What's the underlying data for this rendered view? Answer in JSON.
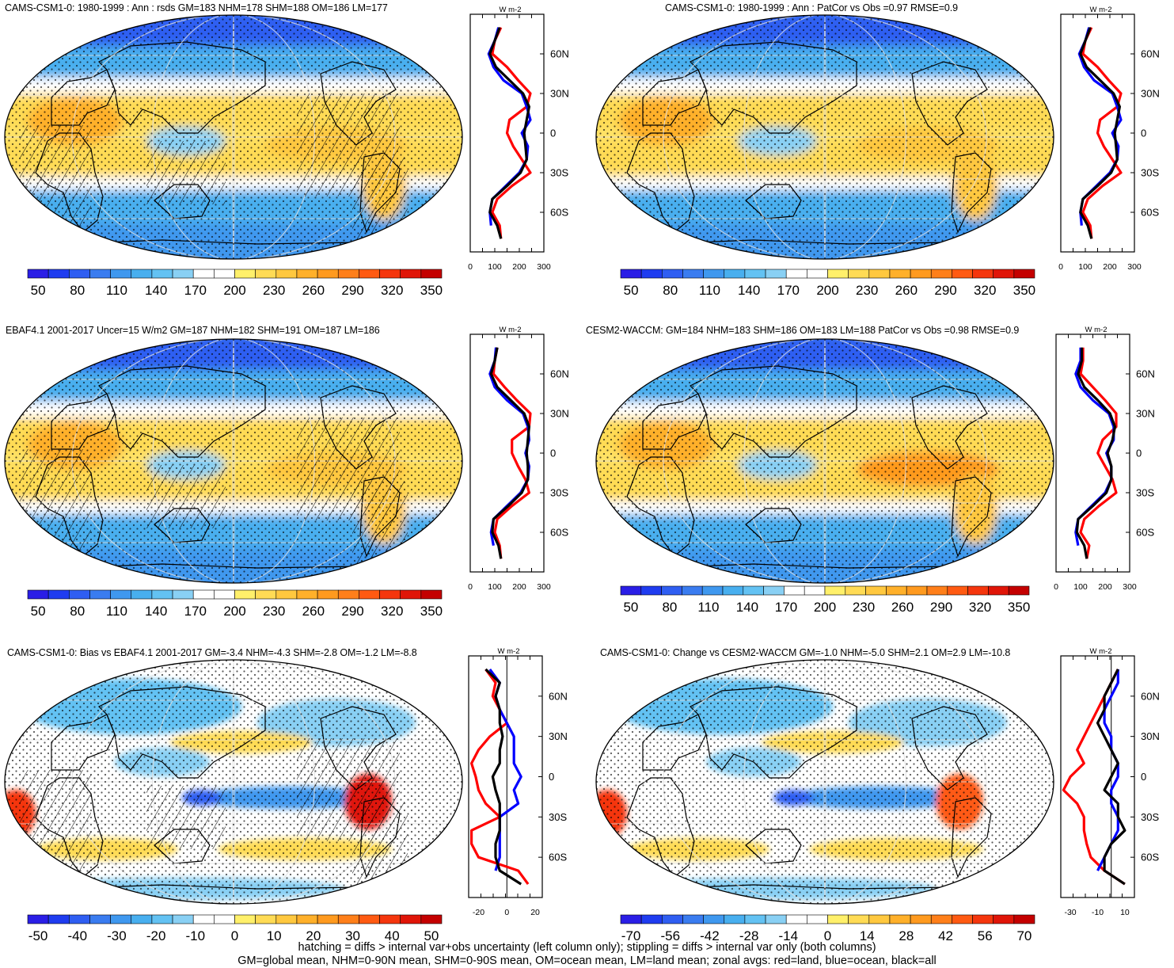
{
  "panels": [
    {
      "title": "CAMS-CSM1-0: 1980-1999 : Ann : rsds GM=183 NHM=178 SHM=188 OM=186 LM=177",
      "kind": "abs",
      "hatch": true,
      "colorbar": {
        "labels": [
          "50",
          "80",
          "110",
          "140",
          "170",
          "200",
          "230",
          "260",
          "290",
          "320",
          "350"
        ]
      },
      "zonal": {
        "unit": "W m-2",
        "xticks": [
          "0",
          "100",
          "200",
          "300"
        ],
        "xlim": [
          0,
          300
        ],
        "yticks": [
          "60N",
          "30N",
          "0",
          "30S",
          "60S"
        ],
        "zero_line": false
      }
    },
    {
      "title": "CAMS-CSM1-0: 1980-1999 : Ann : PatCor vs Obs =0.97 RMSE=0.9",
      "kind": "abs",
      "hatch": false,
      "colorbar": {
        "labels": [
          "50",
          "80",
          "110",
          "140",
          "170",
          "200",
          "230",
          "260",
          "290",
          "320",
          "350"
        ]
      },
      "zonal": {
        "unit": "W m-2",
        "xticks": [
          "0",
          "100",
          "200",
          "300"
        ],
        "xlim": [
          0,
          300
        ],
        "yticks": [
          "60N",
          "30N",
          "0",
          "30S",
          "60S"
        ],
        "zero_line": false
      }
    },
    {
      "title": "EBAF4.1 2001-2017 Uncer=15 W/m2 GM=187 NHM=182 SHM=191 OM=187 LM=186",
      "kind": "abs",
      "hatch": true,
      "colorbar": {
        "labels": [
          "50",
          "80",
          "110",
          "140",
          "170",
          "200",
          "230",
          "260",
          "290",
          "320",
          "350"
        ]
      },
      "zonal": {
        "unit": "W m-2",
        "xticks": [
          "0",
          "100",
          "200",
          "300"
        ],
        "xlim": [
          0,
          300
        ],
        "yticks": [
          "60N",
          "30N",
          "0",
          "30S",
          "60S"
        ],
        "zero_line": false
      }
    },
    {
      "title": "CESM2-WACCM: GM=184 NHM=183 SHM=186 OM=183 LM=188 PatCor vs Obs =0.98 RMSE=0.9",
      "kind": "abs",
      "hatch": false,
      "colorbar": {
        "labels": [
          "50",
          "80",
          "110",
          "140",
          "170",
          "200",
          "230",
          "260",
          "290",
          "320",
          "350"
        ]
      },
      "zonal": {
        "unit": "W m-2",
        "xticks": [
          "0",
          "100",
          "200",
          "300"
        ],
        "xlim": [
          0,
          300
        ],
        "yticks": [
          "60N",
          "30N",
          "0",
          "30S",
          "60S"
        ],
        "zero_line": false
      }
    },
    {
      "title": "CAMS-CSM1-0: Bias vs EBAF4.1 2001-2017 GM=-3.4 NHM=-4.3 SHM=-2.8 OM=-1.2 LM=-8.8",
      "kind": "diff",
      "hatch": true,
      "colorbar": {
        "labels": [
          "-50",
          "-40",
          "-30",
          "-20",
          "-10",
          "0",
          "10",
          "20",
          "30",
          "40",
          "50"
        ]
      },
      "zonal": {
        "unit": "W m-2",
        "xticks": [
          "-20",
          "0",
          "20"
        ],
        "xlim": [
          -27,
          25
        ],
        "yticks": [
          "60N",
          "30N",
          "0",
          "30S",
          "60S"
        ],
        "zero_line": true
      }
    },
    {
      "title": "CAMS-CSM1-0: Change vs CESM2-WACCM GM=-1.0 NHM=-5.0 SHM=2.1 OM=2.9 LM=-10.8",
      "kind": "diff",
      "hatch": false,
      "colorbar": {
        "labels": [
          "-70",
          "-56",
          "-42",
          "-28",
          "-14",
          "0",
          "14",
          "28",
          "42",
          "56",
          "70"
        ]
      },
      "zonal": {
        "unit": "W m-2",
        "xticks": [
          "-30",
          "-10",
          "10"
        ],
        "xlim": [
          -37,
          17
        ],
        "yticks": [
          "60N",
          "30N",
          "0",
          "30S",
          "60S"
        ],
        "zero_line": true
      }
    }
  ],
  "chart_data": [
    {
      "type": "line",
      "title": "CAMS-CSM1-0: 1980-1999 : Ann : rsds GM=183 NHM=178 SHM=188 OM=186 LM=177",
      "xlabel": "W m-2",
      "y_latitude": [
        80,
        70,
        60,
        50,
        40,
        30,
        20,
        10,
        0,
        -10,
        -20,
        -30,
        -40,
        -50,
        -60,
        -70,
        -80
      ],
      "series": [
        {
          "name": "land",
          "color": "#ff0000",
          "values": [
            125,
            100,
            90,
            150,
            195,
            245,
            230,
            160,
            150,
            175,
            210,
            245,
            170,
            110,
            90,
            120,
            125
          ]
        },
        {
          "name": "ocean",
          "color": "#0000ff",
          "values": [
            115,
            100,
            75,
            95,
            135,
            210,
            230,
            245,
            210,
            235,
            230,
            200,
            145,
            90,
            80,
            85,
            null
          ]
        },
        {
          "name": "all",
          "color": "#000000",
          "values": [
            120,
            100,
            80,
            105,
            160,
            215,
            240,
            230,
            220,
            225,
            230,
            205,
            150,
            90,
            80,
            110,
            125
          ]
        }
      ]
    },
    {
      "type": "line",
      "title": "CAMS-CSM1-0: 1980-1999 : Ann : PatCor vs Obs =0.97 RMSE=0.9",
      "xlabel": "W m-2",
      "y_latitude": [
        80,
        70,
        60,
        50,
        40,
        30,
        20,
        10,
        0,
        -10,
        -20,
        -30,
        -40,
        -50,
        -60,
        -70,
        -80
      ],
      "series": [
        {
          "name": "land",
          "color": "#ff0000",
          "values": [
            125,
            100,
            90,
            150,
            195,
            245,
            230,
            160,
            150,
            175,
            210,
            245,
            170,
            110,
            90,
            120,
            125
          ]
        },
        {
          "name": "ocean",
          "color": "#0000ff",
          "values": [
            115,
            100,
            75,
            95,
            135,
            210,
            230,
            245,
            210,
            235,
            230,
            200,
            145,
            90,
            80,
            85,
            null
          ]
        },
        {
          "name": "all",
          "color": "#000000",
          "values": [
            120,
            100,
            80,
            105,
            160,
            215,
            240,
            230,
            220,
            225,
            230,
            205,
            150,
            90,
            80,
            110,
            125
          ]
        }
      ]
    },
    {
      "type": "line",
      "title": "EBAF4.1 2001-2017 Uncer=15 W/m2 GM=187 NHM=182 SHM=191 OM=187 LM=186",
      "xlabel": "W m-2",
      "y_latitude": [
        80,
        70,
        60,
        50,
        40,
        30,
        20,
        10,
        0,
        -10,
        -20,
        -30,
        -40,
        -50,
        -60,
        -70,
        -80
      ],
      "series": [
        {
          "name": "land",
          "color": "#ff0000",
          "values": [
            110,
            100,
            95,
            140,
            190,
            245,
            240,
            170,
            170,
            195,
            225,
            240,
            170,
            110,
            100,
            120,
            125
          ]
        },
        {
          "name": "ocean",
          "color": "#0000ff",
          "values": [
            105,
            100,
            80,
            100,
            150,
            215,
            235,
            240,
            225,
            240,
            235,
            205,
            150,
            95,
            85,
            95,
            null
          ]
        },
        {
          "name": "all",
          "color": "#000000",
          "values": [
            110,
            100,
            85,
            110,
            165,
            220,
            240,
            235,
            230,
            235,
            235,
            210,
            155,
            95,
            90,
            115,
            125
          ]
        }
      ]
    },
    {
      "type": "line",
      "title": "CESM2-WACCM: GM=184 NHM=183 SHM=186 OM=183 LM=188 PatCor vs Obs =0.98 RMSE=0.9",
      "xlabel": "W m-2",
      "y_latitude": [
        80,
        70,
        60,
        50,
        40,
        30,
        20,
        10,
        0,
        -10,
        -20,
        -30,
        -40,
        -50,
        -60,
        -70,
        -80
      ],
      "series": [
        {
          "name": "land",
          "color": "#ff0000",
          "values": [
            110,
            110,
            100,
            150,
            200,
            245,
            245,
            190,
            170,
            200,
            230,
            245,
            175,
            115,
            100,
            135,
            125
          ]
        },
        {
          "name": "ocean",
          "color": "#0000ff",
          "values": [
            100,
            100,
            80,
            100,
            150,
            215,
            235,
            235,
            205,
            225,
            225,
            200,
            145,
            90,
            80,
            90,
            null
          ]
        },
        {
          "name": "all",
          "color": "#000000",
          "values": [
            105,
            105,
            90,
            115,
            170,
            220,
            240,
            230,
            210,
            225,
            225,
            205,
            150,
            90,
            85,
            115,
            125
          ]
        }
      ]
    },
    {
      "type": "line",
      "title": "CAMS-CSM1-0: Bias vs EBAF4.1 2001-2017 GM=-3.4 NHM=-4.3 SHM=-2.8 OM=-1.2 LM=-8.8",
      "xlabel": "W m-2",
      "y_latitude": [
        80,
        70,
        60,
        50,
        40,
        30,
        20,
        10,
        0,
        -10,
        -20,
        -30,
        -40,
        -50,
        -60,
        -70,
        -80
      ],
      "series": [
        {
          "name": "land",
          "color": "#ff0000",
          "values": [
            -15,
            -8,
            -10,
            -5,
            0,
            -12,
            -20,
            -25,
            -22,
            -20,
            -15,
            -5,
            -25,
            -25,
            -20,
            8,
            15
          ]
        },
        {
          "name": "ocean",
          "color": "#0000ff",
          "values": [
            -12,
            -5,
            -8,
            -5,
            0,
            5,
            5,
            5,
            10,
            5,
            8,
            -5,
            -5,
            -5,
            -5,
            -8,
            null
          ]
        },
        {
          "name": "all",
          "color": "#000000",
          "values": [
            -15,
            -5,
            -8,
            -5,
            -5,
            -3,
            -5,
            -5,
            -10,
            -8,
            -5,
            -5,
            -5,
            -8,
            -8,
            -5,
            10
          ]
        }
      ]
    },
    {
      "type": "line",
      "title": "CAMS-CSM1-0: Change vs CESM2-WACCM GM=-1.0 NHM=-5.0 SHM=2.1 OM=2.9 LM=-10.8",
      "xlabel": "W m-2",
      "y_latitude": [
        80,
        70,
        60,
        50,
        40,
        30,
        20,
        10,
        0,
        -10,
        -20,
        -30,
        -40,
        -50,
        -60,
        -70,
        -80
      ],
      "series": [
        {
          "name": "land",
          "color": "#ff0000",
          "values": [
            5,
            0,
            -5,
            -10,
            -15,
            -20,
            -25,
            -20,
            -30,
            -35,
            -25,
            -20,
            -20,
            -18,
            -15,
            -5,
            10
          ]
        },
        {
          "name": "ocean",
          "color": "#0000ff",
          "values": [
            5,
            5,
            0,
            -5,
            -5,
            0,
            0,
            5,
            5,
            0,
            0,
            5,
            5,
            0,
            -5,
            -10,
            null
          ]
        },
        {
          "name": "all",
          "color": "#000000",
          "values": [
            5,
            0,
            -5,
            -5,
            -10,
            -5,
            0,
            5,
            0,
            -5,
            5,
            5,
            10,
            0,
            -5,
            -5,
            10
          ]
        }
      ]
    }
  ],
  "footer": {
    "line1": "hatching = diffs > internal var+obs uncertainty (left column only); stippling = diffs > internal var only (both columns)",
    "line2": "GM=global mean, NHM=0-90N mean, SHM=0-90S mean, OM=ocean mean, LM=land mean; zonal avgs: red=land, blue=ocean, black=all"
  }
}
